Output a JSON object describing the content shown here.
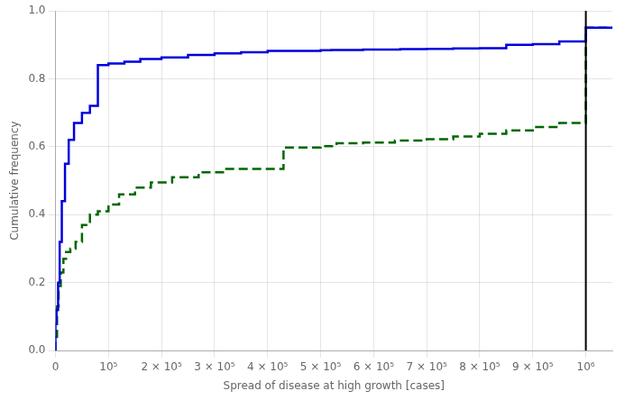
{
  "chart_data": {
    "type": "step",
    "xlabel": "Spread of disease at high growth [cases]",
    "ylabel": "Cumulative frequency",
    "xlim": [
      0,
      1050000
    ],
    "ylim": [
      0.0,
      1.0
    ],
    "grid": true,
    "series": [
      {
        "color": "#0000dd",
        "line_style": "solid",
        "x": [
          0,
          2000,
          5000,
          8000,
          12000,
          18000,
          25000,
          35000,
          50000,
          65000,
          80000,
          100000,
          130000,
          160000,
          200000,
          250000,
          300000,
          350000,
          400000,
          500000,
          520000,
          580000,
          650000,
          700000,
          750000,
          800000,
          850000,
          900000,
          950000,
          1000000,
          1050000
        ],
        "values": [
          0.0,
          0.08,
          0.12,
          0.2,
          0.32,
          0.44,
          0.55,
          0.62,
          0.67,
          0.7,
          0.72,
          0.84,
          0.845,
          0.85,
          0.858,
          0.863,
          0.87,
          0.875,
          0.878,
          0.882,
          0.884,
          0.885,
          0.886,
          0.887,
          0.888,
          0.889,
          0.89,
          0.9,
          0.902,
          0.91,
          0.95
        ]
      },
      {
        "color": "#006600",
        "line_style": "dashed",
        "x": [
          0,
          3000,
          6000,
          10000,
          15000,
          20000,
          28000,
          38000,
          50000,
          65000,
          80000,
          100000,
          120000,
          150000,
          180000,
          220000,
          270000,
          320000,
          380000,
          430000,
          500000,
          530000,
          580000,
          640000,
          700000,
          750000,
          800000,
          850000,
          900000,
          950000,
          1000000,
          1050000
        ],
        "values": [
          0.0,
          0.04,
          0.13,
          0.19,
          0.23,
          0.27,
          0.29,
          0.3,
          0.32,
          0.37,
          0.4,
          0.41,
          0.43,
          0.46,
          0.48,
          0.495,
          0.51,
          0.525,
          0.535,
          0.535,
          0.598,
          0.602,
          0.61,
          0.612,
          0.618,
          0.622,
          0.63,
          0.638,
          0.648,
          0.658,
          0.67,
          0.95
        ]
      }
    ],
    "vline": {
      "x": 1000000,
      "color": "black"
    },
    "xticks": [
      0,
      {
        "value": 100000,
        "label": "10⁵"
      },
      {
        "value": 200000,
        "label": "2 × 10⁵"
      },
      {
        "value": 300000,
        "label": "3 × 10⁵"
      },
      {
        "value": 400000,
        "label": "4 × 10⁵"
      },
      {
        "value": 500000,
        "label": "5 × 10⁵"
      },
      {
        "value": 600000,
        "label": "6 × 10⁵"
      },
      {
        "value": 700000,
        "label": "7 × 10⁵"
      },
      {
        "value": 800000,
        "label": "8 × 10⁵"
      },
      {
        "value": 900000,
        "label": "9 × 10⁵"
      },
      {
        "value": 1000000,
        "label": "10⁶"
      }
    ],
    "yticks": [
      {
        "value": 0.0,
        "label": "0.0"
      },
      0.2,
      0.4,
      0.6,
      0.8,
      {
        "value": 1.0,
        "label": "1.0"
      }
    ]
  }
}
